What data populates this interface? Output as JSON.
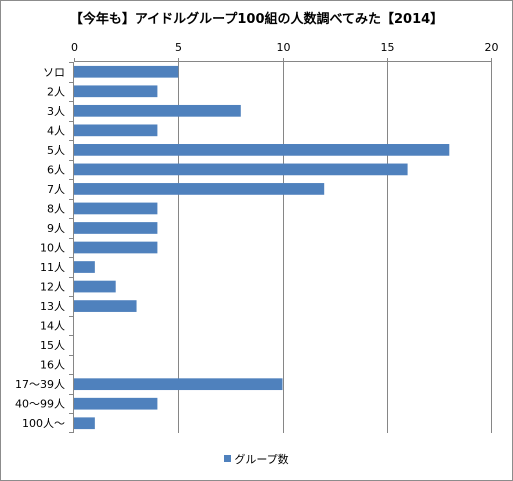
{
  "chart_data": {
    "type": "bar",
    "orientation": "horizontal",
    "title": "【今年も】アイドルグループ100組の人数調べてみた【2014】",
    "categories": [
      "ソロ",
      "2人",
      "3人",
      "4人",
      "5人",
      "6人",
      "7人",
      "8人",
      "9人",
      "10人",
      "11人",
      "12人",
      "13人",
      "14人",
      "15人",
      "16人",
      "17〜39人",
      "40〜99人",
      "100人〜"
    ],
    "series": [
      {
        "name": "グループ数",
        "values": [
          5,
          4,
          8,
          4,
          18,
          16,
          12,
          4,
          4,
          4,
          1,
          2,
          3,
          0,
          0,
          0,
          10,
          4,
          1
        ],
        "color": "#4f81bd"
      }
    ],
    "xlim": [
      0,
      20
    ],
    "xticks": [
      "0",
      "5",
      "10",
      "15",
      "20"
    ],
    "x_axis_position": "top",
    "grid": true,
    "legend_position": "bottom"
  }
}
